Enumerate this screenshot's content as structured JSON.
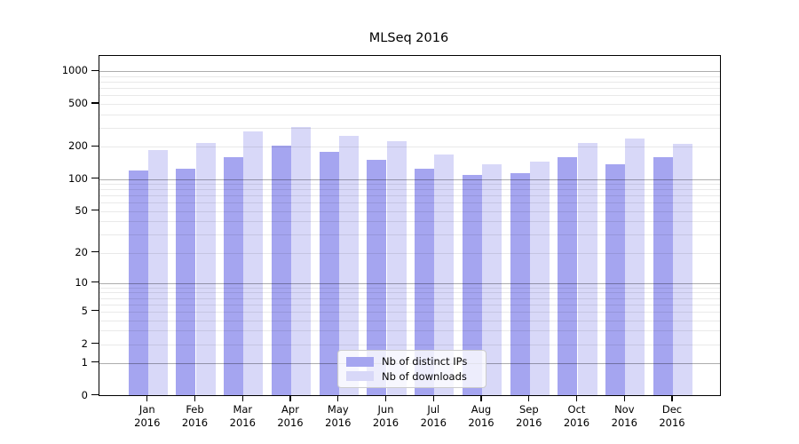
{
  "title": "MLSeq 2016",
  "chart_data": {
    "type": "bar",
    "title": "MLSeq 2016",
    "categories": [
      "Jan",
      "Feb",
      "Mar",
      "Apr",
      "May",
      "Jun",
      "Jul",
      "Aug",
      "Sep",
      "Oct",
      "Nov",
      "Dec"
    ],
    "year_label": "2016",
    "series": [
      {
        "name": "Nb of distinct IPs",
        "color": "#a5a5f0",
        "values": [
          120,
          123,
          158,
          205,
          177,
          150,
          124,
          108,
          112,
          159,
          135,
          160
        ]
      },
      {
        "name": "Nb of downloads",
        "color": "#d8d8f8",
        "values": [
          184,
          215,
          277,
          305,
          251,
          222,
          168,
          137,
          144,
          215,
          237,
          211
        ]
      }
    ],
    "xlabel": "",
    "ylabel": "",
    "y_scale": "log1p",
    "y_ticks": [
      0,
      1,
      2,
      5,
      10,
      20,
      50,
      100,
      200,
      500,
      1000
    ],
    "ylim": [
      0,
      1380
    ],
    "grid": true,
    "legend_position": "lower center"
  },
  "colors": {
    "bar_distinct_ips": "#a5a5f0",
    "bar_downloads": "#d8d8f8",
    "grid_minor": "rgba(0,0,0,0.085)",
    "grid_major": "rgba(0,0,0,0.32)",
    "axis": "#000000",
    "background": "#ffffff"
  }
}
